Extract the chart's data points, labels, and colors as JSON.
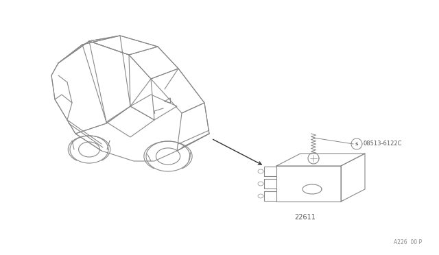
{
  "background_color": "#ffffff",
  "line_color": "#888888",
  "text_color": "#555555",
  "part_label_ecu": "22611",
  "part_label_screw": "08513-6122C",
  "footer_text": "A226  00 P",
  "fig_width": 6.4,
  "fig_height": 3.72,
  "dpi": 100
}
